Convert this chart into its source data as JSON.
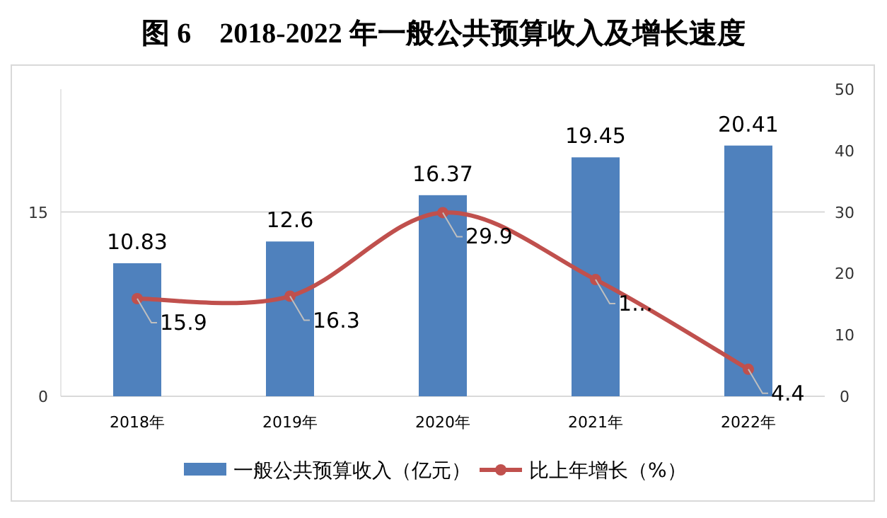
{
  "chart_data": {
    "type": "bar",
    "title": "图 6　2018-2022 年一般公共预算收入及增长速度",
    "categories": [
      "2018年",
      "2019年",
      "2020年",
      "2021年",
      "2022年"
    ],
    "series": [
      {
        "name": "一般公共预算收入（亿元）",
        "color": "#4f81bd",
        "values": [
          10.83,
          12.6,
          16.37,
          19.45,
          20.41
        ],
        "value_labels": [
          "10.83",
          "12.6",
          "16.37",
          "19.45",
          "20.41"
        ]
      },
      {
        "name": "比上年增长（%）",
        "type": "line",
        "axis": "y2",
        "color": "#c0504d",
        "marker": "circle",
        "values": [
          15.9,
          16.3,
          29.9,
          19,
          4.4
        ],
        "value_labels": [
          "15.9",
          "16.3",
          "29.9",
          "1…",
          "4.4"
        ]
      }
    ],
    "ylim": [
      0,
      25
    ],
    "yticks": [
      0,
      15
    ],
    "y2lim": [
      0,
      50
    ],
    "y2ticks": [
      0,
      10,
      20,
      30,
      40,
      50
    ],
    "grid": "y",
    "legend": "bottom"
  }
}
